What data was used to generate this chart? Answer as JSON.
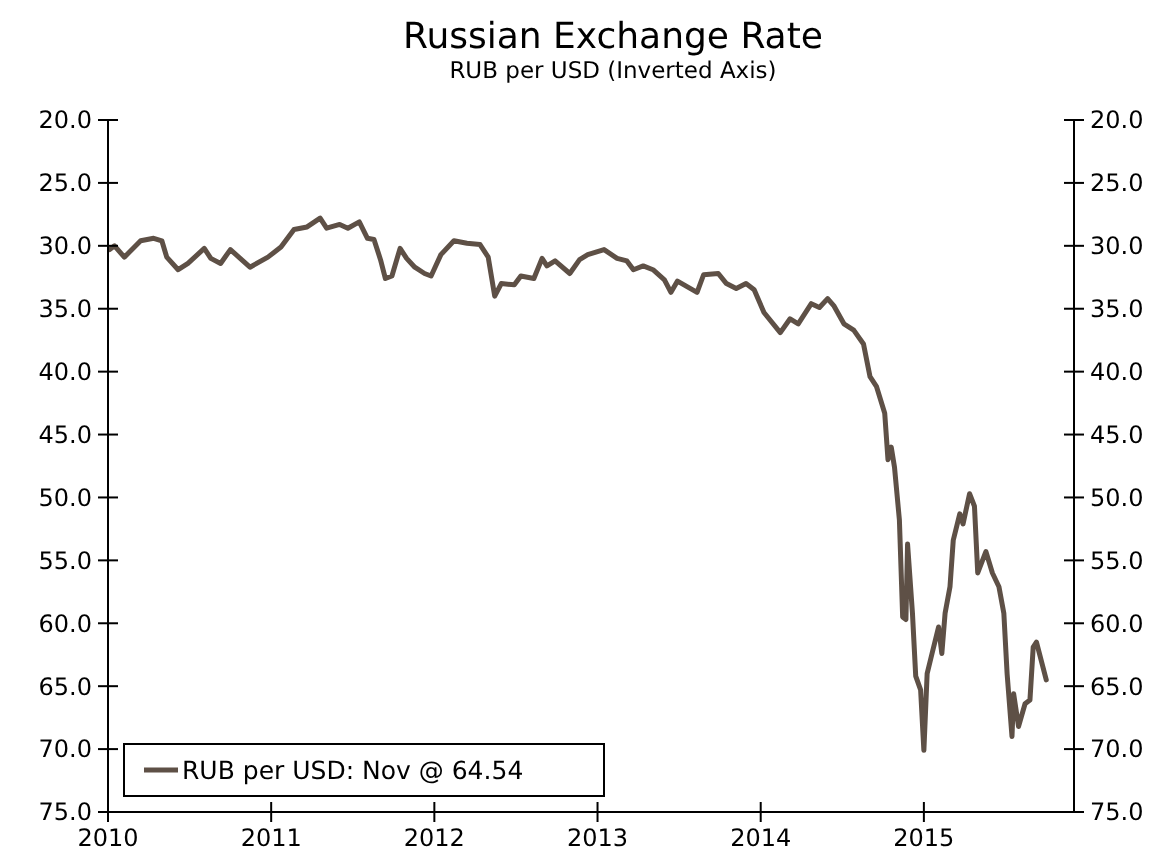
{
  "chart_data": {
    "type": "line",
    "title": "Russian Exchange Rate",
    "subtitle": "RUB per USD (Inverted Axis)",
    "xlim": [
      2010,
      2015.92
    ],
    "xticks": [
      2010,
      2011,
      2012,
      2013,
      2014,
      2015
    ],
    "ylim": [
      75,
      20
    ],
    "yticks": [
      {
        "value": 20,
        "label": "20.0"
      },
      {
        "value": 25,
        "label": "25.0"
      },
      {
        "value": 30,
        "label": "30.0"
      },
      {
        "value": 35,
        "label": "35.0"
      },
      {
        "value": 40,
        "label": "40.0"
      },
      {
        "value": 45,
        "label": "45.0"
      },
      {
        "value": 50,
        "label": "50.0"
      },
      {
        "value": 55,
        "label": "55.0"
      },
      {
        "value": 60,
        "label": "60.0"
      },
      {
        "value": 65,
        "label": "65.0"
      },
      {
        "value": 70,
        "label": "70.0"
      },
      {
        "value": 75,
        "label": "75.0"
      }
    ],
    "y2lim": [
      75,
      20
    ],
    "y2ticks": [
      {
        "value": 20,
        "label": "20.0"
      },
      {
        "value": 25,
        "label": "25.0"
      },
      {
        "value": 30,
        "label": "30.0"
      },
      {
        "value": 35,
        "label": "35.0"
      },
      {
        "value": 40,
        "label": "40.0"
      },
      {
        "value": 45,
        "label": "45.0"
      },
      {
        "value": 50,
        "label": "50.0"
      },
      {
        "value": 55,
        "label": "55.0"
      },
      {
        "value": 60,
        "label": "60.0"
      },
      {
        "value": 65,
        "label": "65.0"
      },
      {
        "value": 70,
        "label": "70.0"
      },
      {
        "value": 75,
        "label": "75.0"
      }
    ],
    "grid": false,
    "legend": "bottom left",
    "line_style": "solid",
    "x": [
      2010.01,
      2010.04,
      2010.1,
      2010.2,
      2010.28,
      2010.33,
      2010.36,
      2010.43,
      2010.49,
      2010.59,
      2010.63,
      2010.69,
      2010.75,
      2010.87,
      2010.98,
      2011.06,
      2011.14,
      2011.22,
      2011.3,
      2011.34,
      2011.42,
      2011.47,
      2011.54,
      2011.59,
      2011.63,
      2011.67,
      2011.7,
      2011.74,
      2011.79,
      2011.83,
      2011.88,
      2011.94,
      2011.98,
      2012.04,
      2012.12,
      2012.2,
      2012.28,
      2012.33,
      2012.37,
      2012.41,
      2012.49,
      2012.53,
      2012.61,
      2012.66,
      2012.69,
      2012.74,
      2012.83,
      2012.89,
      2012.94,
      2013.04,
      2013.12,
      2013.18,
      2013.22,
      2013.28,
      2013.34,
      2013.41,
      2013.45,
      2013.49,
      2013.61,
      2013.65,
      2013.74,
      2013.79,
      2013.85,
      2013.91,
      2013.96,
      2014.02,
      2014.12,
      2014.18,
      2014.23,
      2014.31,
      2014.36,
      2014.41,
      2014.45,
      2014.51,
      2014.57,
      2014.63,
      2014.67,
      2014.71,
      2014.76,
      2014.78,
      2014.8,
      2014.82,
      2014.85,
      2014.87,
      2014.89,
      2014.9,
      2014.93,
      2014.95,
      2014.98,
      2015.0,
      2015.02,
      2015.05,
      2015.09,
      2015.11,
      2015.13,
      2015.16,
      2015.18,
      2015.22,
      2015.24,
      2015.28,
      2015.31,
      2015.33,
      2015.38,
      2015.42,
      2015.46,
      2015.49,
      2015.51,
      2015.54,
      2015.55,
      2015.58,
      2015.62,
      2015.65,
      2015.67,
      2015.69,
      2015.75
    ],
    "series": [
      {
        "name": "RUB per USD: Nov @ 64.54",
        "color": "#5e5046",
        "values": [
          30.3,
          30.0,
          30.9,
          29.6,
          29.4,
          29.6,
          30.9,
          31.9,
          31.4,
          30.2,
          31.0,
          31.4,
          30.3,
          31.7,
          30.9,
          30.1,
          28.7,
          28.5,
          27.8,
          28.6,
          28.3,
          28.6,
          28.1,
          29.4,
          29.5,
          31.1,
          32.6,
          32.4,
          30.2,
          31.0,
          31.7,
          32.2,
          32.4,
          30.7,
          29.6,
          29.8,
          29.9,
          30.9,
          34.0,
          33.0,
          33.1,
          32.4,
          32.6,
          31.0,
          31.6,
          31.2,
          32.2,
          31.1,
          30.7,
          30.3,
          31.0,
          31.2,
          31.9,
          31.6,
          31.9,
          32.7,
          33.7,
          32.8,
          33.7,
          32.3,
          32.2,
          33.0,
          33.4,
          33.0,
          33.5,
          35.3,
          36.9,
          35.8,
          36.2,
          34.6,
          34.9,
          34.2,
          34.8,
          36.2,
          36.7,
          37.8,
          40.4,
          41.2,
          43.3,
          47.0,
          46.0,
          47.6,
          51.8,
          59.5,
          59.7,
          53.7,
          59.2,
          64.2,
          65.3,
          70.1,
          64.0,
          62.4,
          60.3,
          62.4,
          59.2,
          57.1,
          53.4,
          51.3,
          52.1,
          49.7,
          50.7,
          56.0,
          54.3,
          56.0,
          57.1,
          59.2,
          64.0,
          69.0,
          65.6,
          68.2,
          66.4,
          66.1,
          61.9,
          61.5,
          64.5
        ]
      }
    ]
  }
}
